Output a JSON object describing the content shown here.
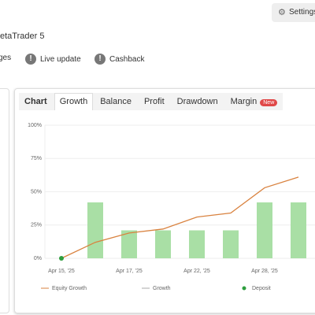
{
  "header": {
    "settings": "Settings",
    "platform": "etaTrader 5"
  },
  "actions": [
    "ges",
    "Live update",
    "Cashback"
  ],
  "tabs": [
    "Chart",
    "Growth",
    "Balance",
    "Profit",
    "Drawdown",
    "Margin"
  ],
  "new_badge": "New",
  "chart_data": {
    "type": "bar-line",
    "categories": [
      "Apr 15, '25",
      null,
      "Apr 17, '25",
      null,
      "Apr 22, '25",
      null,
      "Apr 28, '25",
      null
    ],
    "series": [
      {
        "name": "Equity Growth",
        "type": "line",
        "color": "#d9823f",
        "values": [
          0,
          12,
          19,
          22,
          31,
          34,
          53,
          61
        ]
      },
      {
        "name": "Growth",
        "type": "bar",
        "color": "#a9dfa5",
        "legend_color": "#aaaaaa",
        "values": [
          null,
          42,
          21,
          21,
          21,
          21,
          42,
          42
        ]
      },
      {
        "name": "Deposit",
        "type": "point",
        "color": "#2e9e3e",
        "values": [
          0,
          null,
          null,
          null,
          null,
          null,
          null,
          null
        ]
      }
    ],
    "ylim": [
      0,
      100
    ],
    "yticks": [
      {
        "value": 0,
        "label": "0%"
      },
      {
        "value": 25,
        "label": "25%"
      },
      {
        "value": 50,
        "label": "50%"
      },
      {
        "value": 75,
        "label": "75%"
      },
      {
        "value": 100,
        "label": "100%"
      }
    ],
    "grid": true
  }
}
